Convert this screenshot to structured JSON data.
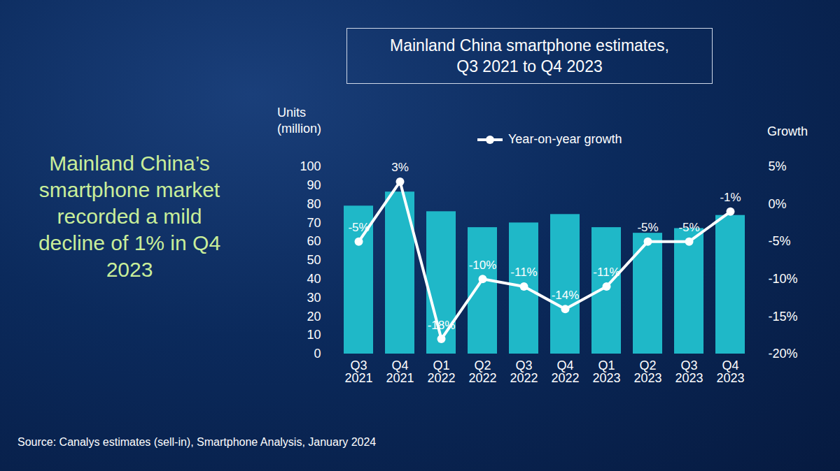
{
  "chart_data": {
    "type": "bar",
    "title": "Mainland China smartphone estimates, Q3 2021 to Q4 2023",
    "annotations": [
      "Mainland China’s smartphone market recorded a mild decline of 1% in Q4 2023"
    ],
    "source": "Source: Canalys estimates (sell-in), Smartphone Analysis, January 2024",
    "y_label": "Units (million)",
    "y2_label": "Growth",
    "categories": [
      "Q3 2021",
      "Q4 2021",
      "Q1 2022",
      "Q2 2022",
      "Q3 2022",
      "Q4 2022",
      "Q1 2023",
      "Q2 2023",
      "Q3 2023",
      "Q4 2023"
    ],
    "series": [
      {
        "type": "bar",
        "color": "#1fb8c8",
        "values": [
          79,
          86.5,
          76,
          67.5,
          70,
          74.5,
          67.5,
          64.5,
          67,
          74
        ]
      },
      {
        "name": "Year-on-year growth",
        "type": "line",
        "axis": "y2",
        "color": "#ffffff",
        "marker": "circle",
        "data_labels": true,
        "values": [
          -5,
          3,
          -18,
          -10,
          -11,
          -14,
          -11,
          -5,
          -5,
          -1
        ],
        "value_labels": [
          "-5%",
          "3%",
          "-18%",
          "-10%",
          "-11%",
          "-14%",
          "-11%",
          "-5%",
          "-5%",
          "-1%"
        ]
      }
    ],
    "ylim": [
      0,
      100
    ],
    "yticks": [
      0,
      10,
      20,
      30,
      40,
      50,
      60,
      70,
      80,
      90,
      100
    ],
    "y2lim": [
      -20,
      5
    ],
    "y2ticks": [
      {
        "value": -20,
        "label": "-20%"
      },
      {
        "value": -15,
        "label": "-15%"
      },
      {
        "value": -10,
        "label": "-10%"
      },
      {
        "value": -5,
        "label": "-5%"
      },
      {
        "value": 0,
        "label": "0%"
      },
      {
        "value": 5,
        "label": "5%"
      }
    ],
    "legend": "top",
    "grid": false
  }
}
